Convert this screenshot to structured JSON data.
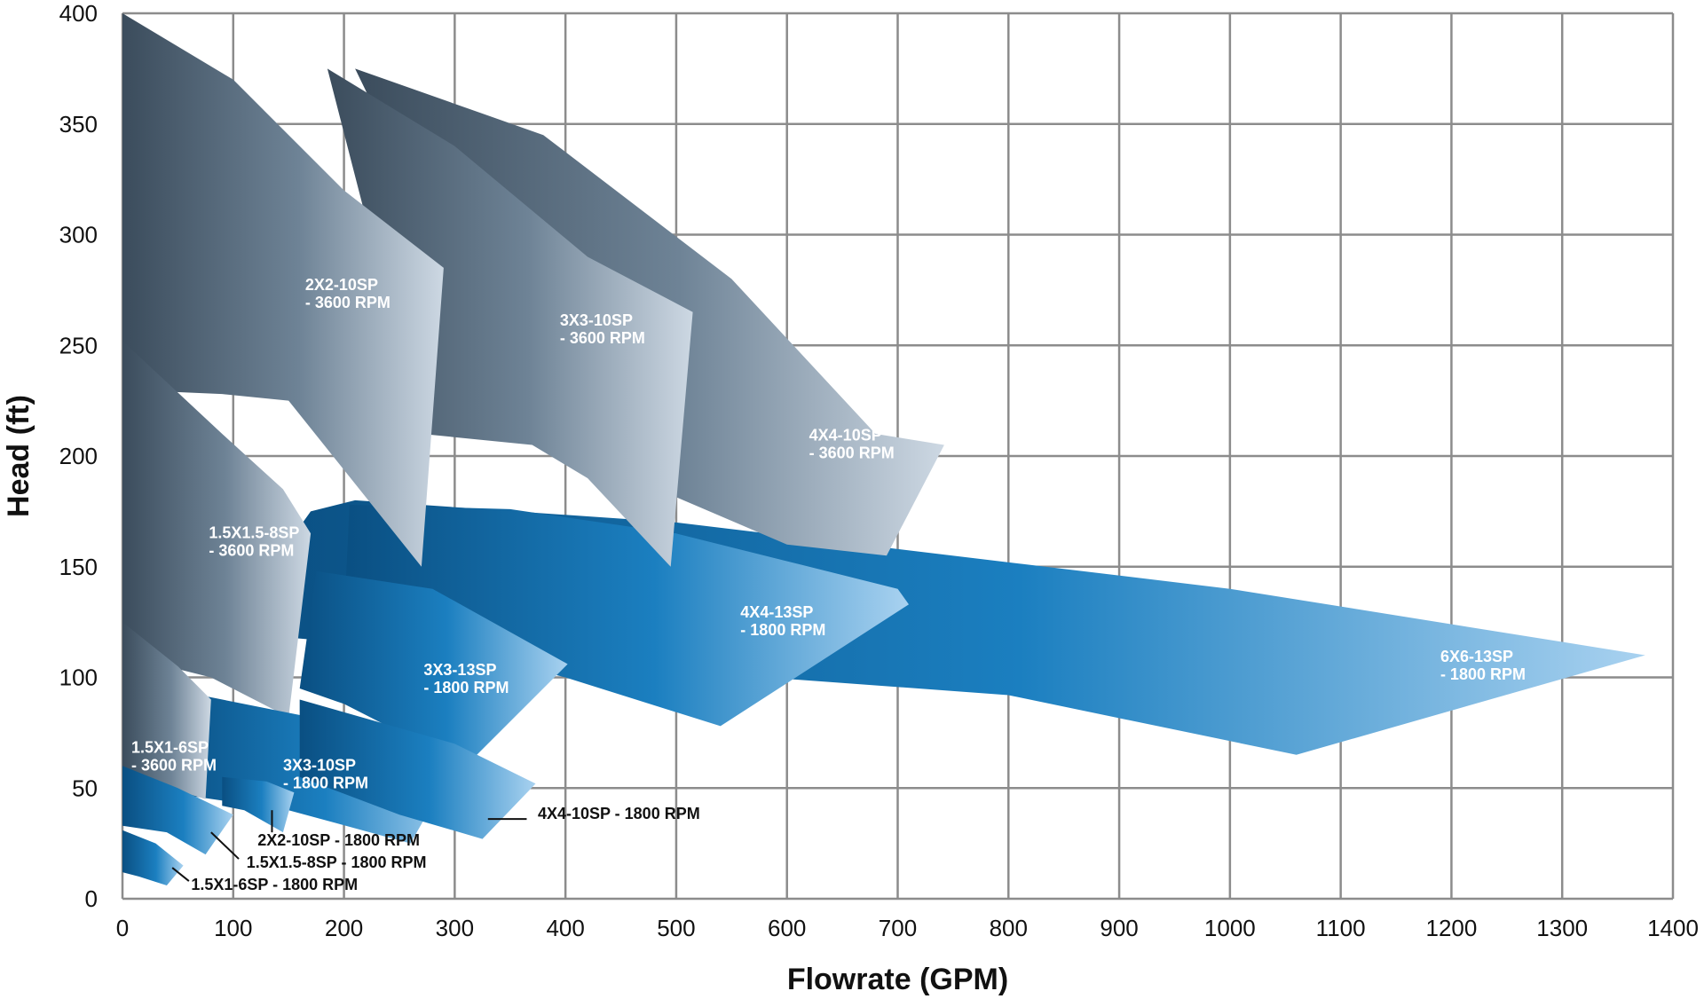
{
  "chart_data": {
    "type": "area",
    "title": "",
    "xlabel": "Flowrate (GPM)",
    "ylabel": "Head (ft)",
    "xlim": [
      0,
      1400
    ],
    "ylim": [
      0,
      400
    ],
    "x_ticks": [
      0,
      100,
      200,
      300,
      400,
      500,
      600,
      700,
      800,
      900,
      1000,
      1100,
      1200,
      1300,
      1400
    ],
    "y_ticks": [
      0,
      50,
      100,
      150,
      200,
      250,
      300,
      350,
      400
    ],
    "grid": true,
    "legend": "none",
    "colors": {
      "rpm_3600_dark": "#3b4c5c",
      "rpm_3600_light": "#cdd8e3",
      "rpm_1800_dark": "#0a4f82",
      "rpm_1800_light": "#a9d2f0",
      "grid": "#8c8c8c"
    },
    "series": [
      {
        "name": "6X6-13SP - 1800 RPM",
        "label_lines": [
          "6X6-13SP",
          "- 1800 RPM"
        ],
        "speed": "1800",
        "label_at": [
          1190,
          107
        ],
        "polygon": [
          [
            170,
            175
          ],
          [
            210,
            180
          ],
          [
            500,
            170
          ],
          [
            1000,
            140
          ],
          [
            1375,
            110
          ],
          [
            1060,
            65
          ],
          [
            800,
            92
          ],
          [
            500,
            103
          ],
          [
            150,
            118
          ],
          [
            120,
            140
          ]
        ]
      },
      {
        "name": "4X4-13SP - 1800 RPM",
        "label_lines": [
          "4X4-13SP",
          "- 1800 RPM"
        ],
        "speed": "1800",
        "label_at": [
          558,
          127
        ],
        "polygon": [
          [
            205,
            178
          ],
          [
            350,
            176
          ],
          [
            500,
            165
          ],
          [
            700,
            140
          ],
          [
            710,
            133
          ],
          [
            540,
            78
          ],
          [
            400,
            100
          ],
          [
            200,
            125
          ]
        ]
      },
      {
        "name": "3X3-13SP - 1800 RPM",
        "label_lines": [
          "3X3-13SP",
          "- 1800 RPM"
        ],
        "speed": "1800",
        "label_at": [
          272,
          101
        ],
        "polygon": [
          [
            175,
            148
          ],
          [
            280,
            140
          ],
          [
            402,
            106
          ],
          [
            310,
            60
          ],
          [
            200,
            88
          ],
          [
            160,
            95
          ]
        ]
      },
      {
        "name": "4X4-10SP - 3600 RPM",
        "label_lines": [
          "4X4-10SP",
          "- 3600 RPM"
        ],
        "speed": "3600",
        "label_at": [
          620,
          207
        ],
        "polygon": [
          [
            210,
            375
          ],
          [
            380,
            345
          ],
          [
            550,
            280
          ],
          [
            680,
            210
          ],
          [
            742,
            205
          ],
          [
            690,
            155
          ],
          [
            600,
            160
          ],
          [
            390,
            205
          ],
          [
            370,
            210
          ]
        ]
      },
      {
        "name": "3X3-10SP - 3600 RPM",
        "label_lines": [
          "3X3-10SP",
          "- 3600 RPM"
        ],
        "speed": "3600",
        "label_at": [
          395,
          259
        ],
        "polygon": [
          [
            185,
            375
          ],
          [
            300,
            340
          ],
          [
            420,
            290
          ],
          [
            515,
            265
          ],
          [
            495,
            150
          ],
          [
            420,
            190
          ],
          [
            370,
            205
          ],
          [
            270,
            210
          ]
        ]
      },
      {
        "name": "2X2-10SP - 3600 RPM",
        "label_lines": [
          "2X2-10SP",
          "- 3600 RPM"
        ],
        "speed": "3600",
        "label_at": [
          165,
          275
        ],
        "polygon": [
          [
            0,
            400
          ],
          [
            100,
            370
          ],
          [
            200,
            320
          ],
          [
            290,
            285
          ],
          [
            270,
            150
          ],
          [
            150,
            225
          ],
          [
            90,
            228
          ],
          [
            0,
            230
          ]
        ]
      },
      {
        "name": "1.5X1.5-8SP - 3600 RPM",
        "label_lines": [
          "1.5X1.5-8SP",
          "- 3600 RPM"
        ],
        "speed": "3600",
        "label_at": [
          78,
          163
        ],
        "polygon": [
          [
            0,
            252
          ],
          [
            90,
            210
          ],
          [
            145,
            185
          ],
          [
            170,
            165
          ],
          [
            150,
            82
          ],
          [
            80,
            100
          ],
          [
            40,
            105
          ],
          [
            0,
            108
          ]
        ]
      },
      {
        "name": "3X3-10SP - 1800 RPM",
        "label_lines": [
          "3X3-10SP",
          "- 1800 RPM"
        ],
        "speed": "1800",
        "label_at": [
          145,
          58
        ],
        "polygon": [
          [
            40,
            95
          ],
          [
            190,
            80
          ],
          [
            300,
            60
          ],
          [
            260,
            25
          ],
          [
            150,
            40
          ],
          [
            40,
            48
          ]
        ]
      },
      {
        "name": "4X4-10SP - 1800 RPM",
        "label_lines": [
          "4X4-10SP - 1800 RPM"
        ],
        "speed": "1800",
        "callout": true,
        "label_at": [
          375,
          36
        ],
        "callout_from": [
          365,
          36
        ],
        "callout_to": [
          330,
          36
        ],
        "polygon": [
          [
            160,
            90
          ],
          [
            300,
            70
          ],
          [
            373,
            52
          ],
          [
            325,
            27
          ],
          [
            250,
            38
          ],
          [
            160,
            55
          ]
        ]
      },
      {
        "name": "1.5X1-6SP - 3600 RPM",
        "label_lines": [
          "1.5X1-6SP",
          "- 3600 RPM"
        ],
        "speed": "3600",
        "label_at": [
          8,
          66
        ],
        "polygon": [
          [
            0,
            125
          ],
          [
            50,
            105
          ],
          [
            80,
            90
          ],
          [
            75,
            45
          ],
          [
            30,
            52
          ],
          [
            0,
            55
          ]
        ]
      },
      {
        "name": "2X2-10SP - 1800 RPM",
        "label_lines": [
          "2X2-10SP - 1800 RPM"
        ],
        "speed": "1800",
        "callout": true,
        "label_at": [
          122,
          24
        ],
        "callout_from": [
          135,
          30
        ],
        "callout_to": [
          135,
          40
        ],
        "polygon": [
          [
            90,
            55
          ],
          [
            130,
            53
          ],
          [
            155,
            48
          ],
          [
            145,
            30
          ],
          [
            110,
            40
          ],
          [
            90,
            42
          ]
        ]
      },
      {
        "name": "1.5X1.5-8SP - 1800 RPM",
        "label_lines": [
          "1.5X1.5-8SP - 1800 RPM"
        ],
        "speed": "1800",
        "callout": true,
        "label_at": [
          112,
          14
        ],
        "callout_from": [
          105,
          18
        ],
        "callout_to": [
          80,
          30
        ],
        "polygon": [
          [
            0,
            60
          ],
          [
            50,
            50
          ],
          [
            100,
            38
          ],
          [
            75,
            20
          ],
          [
            40,
            30
          ],
          [
            0,
            33
          ]
        ]
      },
      {
        "name": "1.5X1-6SP - 1800 RPM",
        "label_lines": [
          "1.5X1-6SP - 1800 RPM"
        ],
        "speed": "1800",
        "callout": true,
        "label_at": [
          62,
          4
        ],
        "callout_from": [
          60,
          8
        ],
        "callout_to": [
          45,
          14
        ],
        "polygon": [
          [
            0,
            31
          ],
          [
            30,
            25
          ],
          [
            55,
            15
          ],
          [
            40,
            6
          ],
          [
            15,
            10
          ],
          [
            0,
            12
          ]
        ]
      }
    ]
  }
}
